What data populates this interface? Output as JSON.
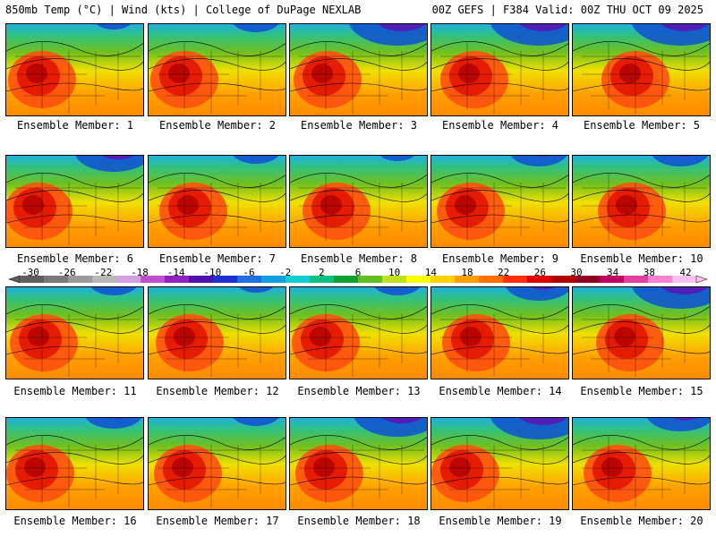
{
  "header": {
    "left": "850mb Temp (°C) | Wind (kts) | College of DuPage NEXLAB",
    "right": "00Z GEFS | F384 Valid: 00Z THU OCT 09 2025"
  },
  "members": [
    {
      "label": "Ensemble Member: 1"
    },
    {
      "label": "Ensemble Member: 2"
    },
    {
      "label": "Ensemble Member: 3"
    },
    {
      "label": "Ensemble Member: 4"
    },
    {
      "label": "Ensemble Member: 5"
    },
    {
      "label": "Ensemble Member: 6"
    },
    {
      "label": "Ensemble Member: 7"
    },
    {
      "label": "Ensemble Member: 8"
    },
    {
      "label": "Ensemble Member: 9"
    },
    {
      "label": "Ensemble Member: 10"
    },
    {
      "label": "Ensemble Member: 11"
    },
    {
      "label": "Ensemble Member: 12"
    },
    {
      "label": "Ensemble Member: 13"
    },
    {
      "label": "Ensemble Member: 14"
    },
    {
      "label": "Ensemble Member: 15"
    },
    {
      "label": "Ensemble Member: 16"
    },
    {
      "label": "Ensemble Member: 17"
    },
    {
      "label": "Ensemble Member: 18"
    },
    {
      "label": "Ensemble Member: 19"
    },
    {
      "label": "Ensemble Member: 20"
    }
  ],
  "colorbar": {
    "labels": [
      "-30",
      "-26",
      "-22",
      "-18",
      "-14",
      "-10",
      "-6",
      "-2",
      "2",
      "6",
      "10",
      "14",
      "18",
      "22",
      "26",
      "30",
      "34",
      "38",
      "42"
    ],
    "colors": [
      "#5e5e5e",
      "#7a7a7a",
      "#9a9a9a",
      "#b8b8b8",
      "#d0a0e0",
      "#c050d0",
      "#9020c0",
      "#5010b0",
      "#2030d0",
      "#2070e0",
      "#10a0e0",
      "#10d0d0",
      "#10c080",
      "#10a030",
      "#60c020",
      "#c0e020",
      "#ffff00",
      "#ffd000",
      "#ffa000",
      "#ff7000",
      "#ff3000",
      "#e00000",
      "#b00000",
      "#900020",
      "#c00060",
      "#e040a0",
      "#ff80d0",
      "#ffc0f0"
    ]
  }
}
